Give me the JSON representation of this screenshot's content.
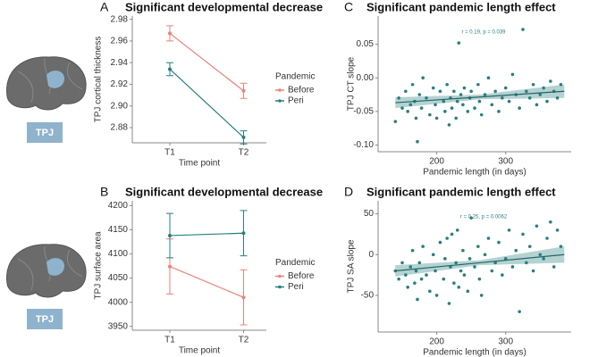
{
  "icons": [
    {
      "label": "TPJ"
    },
    {
      "label": "TPJ"
    }
  ],
  "chart_data": [
    {
      "type": "line",
      "label": "A",
      "title": "Significant developmental decrease",
      "x_label": "Time point",
      "y_label": "TPJ cortical thickness",
      "legend_title": "Pandemic",
      "categories": [
        "T1",
        "T2"
      ],
      "series": [
        {
          "name": "Before",
          "color": "#e8837a",
          "values": [
            2.967,
            2.914
          ],
          "errors": [
            0.007,
            0.007
          ]
        },
        {
          "name": "Peri",
          "color": "#2a7f7f",
          "values": [
            2.934,
            2.871
          ],
          "errors": [
            0.006,
            0.006
          ]
        }
      ],
      "ylim": [
        2.866,
        2.983
      ],
      "yticks": [
        2.88,
        {
          "value": 2.9,
          "label": "2.90"
        },
        2.92,
        2.94,
        2.96,
        2.98
      ]
    },
    {
      "type": "line",
      "label": "B",
      "title": "Significant developmental decrease",
      "x_label": "Time point",
      "y_label": "TPJ surface area",
      "legend_title": "Pandemic",
      "categories": [
        "T1",
        "T2"
      ],
      "series": [
        {
          "name": "Before",
          "color": "#e8837a",
          "values": [
            4074,
            4010
          ],
          "errors": [
            57,
            57
          ]
        },
        {
          "name": "Peri",
          "color": "#2a7f7f",
          "values": [
            4138,
            4143
          ],
          "errors": [
            46,
            47
          ]
        }
      ],
      "ylim": [
        3942,
        4210
      ],
      "yticks": [
        3950,
        4000,
        4050,
        4100,
        4150,
        4200
      ]
    },
    {
      "type": "scatter",
      "label": "C",
      "title": "Significant pandemic length effect",
      "x_label": "Pandemic length (in days)",
      "y_label": "TPJ CT slope",
      "annotation": "r = 0.19, p = 0.039",
      "color": "#2a7f7f",
      "x": [
        140,
        145,
        150,
        155,
        158,
        162,
        165,
        168,
        170,
        172,
        175,
        178,
        180,
        185,
        190,
        195,
        198,
        200,
        205,
        210,
        212,
        215,
        218,
        220,
        222,
        225,
        228,
        230,
        232,
        235,
        238,
        240,
        245,
        248,
        250,
        255,
        260,
        262,
        265,
        270,
        275,
        280,
        285,
        290,
        295,
        300,
        305,
        310,
        315,
        320,
        325,
        330,
        335,
        340,
        345,
        350,
        355,
        360,
        365,
        370,
        375,
        380
      ],
      "values": [
        -0.065,
        -0.03,
        -0.045,
        -0.02,
        -0.05,
        -0.04,
        -0.01,
        -0.035,
        -0.06,
        -0.095,
        -0.025,
        -0.045,
        0.0,
        -0.03,
        -0.055,
        -0.015,
        -0.04,
        -0.06,
        -0.02,
        -0.035,
        -0.05,
        -0.01,
        -0.07,
        -0.03,
        -0.045,
        -0.02,
        -0.06,
        -0.035,
        0.052,
        -0.025,
        -0.04,
        -0.015,
        -0.05,
        -0.03,
        -0.02,
        -0.045,
        -0.01,
        -0.035,
        -0.055,
        -0.025,
        0.0,
        -0.04,
        -0.02,
        -0.05,
        -0.03,
        -0.015,
        -0.035,
        0.005,
        -0.025,
        -0.045,
        0.072,
        -0.02,
        -0.03,
        -0.01,
        -0.04,
        -0.025,
        -0.015,
        -0.035,
        -0.005,
        -0.02,
        -0.03,
        -0.01
      ],
      "fit": {
        "x": [
          140,
          385
        ],
        "values": [
          -0.037,
          -0.02
        ]
      },
      "band": {
        "x": [
          140,
          262,
          385
        ],
        "lower": [
          -0.045,
          -0.032,
          -0.03
        ],
        "upper": [
          -0.029,
          -0.025,
          -0.01
        ]
      },
      "xlim": [
        115,
        395
      ],
      "xticks": [
        200,
        300
      ],
      "ylim": [
        -0.11,
        0.092
      ],
      "yticks": [
        {
          "value": -0.1,
          "label": "-0.10"
        },
        -0.05,
        {
          "value": 0,
          "label": "0.00"
        },
        0.05
      ]
    },
    {
      "type": "scatter",
      "label": "D",
      "title": "Significant pandemic length effect",
      "x_label": "Pandemic length (in days)",
      "y_label": "TPJ SA slope",
      "annotation": "r = 0.25, p = 0.0062",
      "color": "#2a7f7f",
      "x": [
        140,
        145,
        150,
        155,
        158,
        162,
        165,
        168,
        170,
        172,
        175,
        178,
        180,
        185,
        190,
        195,
        198,
        200,
        205,
        210,
        212,
        215,
        218,
        220,
        222,
        225,
        228,
        230,
        232,
        235,
        238,
        240,
        245,
        248,
        250,
        255,
        260,
        262,
        265,
        270,
        275,
        280,
        285,
        290,
        295,
        300,
        305,
        310,
        315,
        320,
        325,
        330,
        335,
        340,
        345,
        350,
        355,
        360,
        365,
        370,
        375,
        380
      ],
      "values": [
        -20,
        -30,
        -10,
        -25,
        -40,
        -15,
        5,
        -35,
        -20,
        -55,
        -10,
        -30,
        10,
        -25,
        -45,
        0,
        -20,
        -50,
        15,
        -30,
        -5,
        20,
        -60,
        -15,
        25,
        -35,
        -10,
        30,
        -40,
        -20,
        5,
        -25,
        -45,
        -5,
        45,
        -15,
        10,
        -30,
        -50,
        0,
        20,
        -20,
        -10,
        15,
        -25,
        -5,
        30,
        -15,
        5,
        -70,
        25,
        -10,
        10,
        -20,
        35,
        0,
        -5,
        20,
        40,
        -15,
        30,
        10
      ],
      "fit": {
        "x": [
          140,
          385
        ],
        "values": [
          -20,
          0
        ]
      },
      "band": {
        "x": [
          140,
          262,
          385
        ],
        "lower": [
          -27,
          -13,
          -10
        ],
        "upper": [
          -13,
          -7,
          10
        ]
      },
      "xlim": [
        115,
        395
      ],
      "xticks": [
        200,
        300
      ],
      "ylim": [
        -95,
        66
      ],
      "yticks": [
        -50,
        0,
        50
      ]
    }
  ]
}
